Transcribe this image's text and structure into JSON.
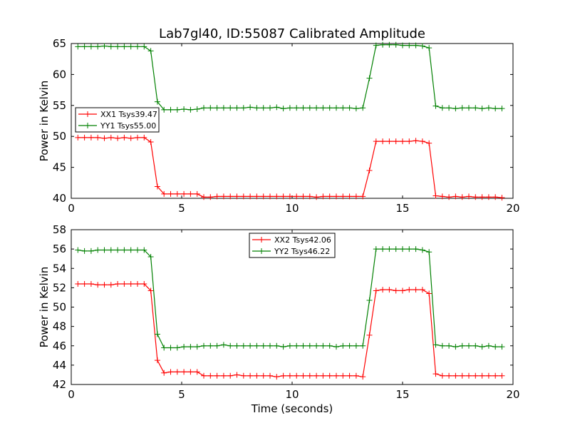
{
  "figure": {
    "title": "Lab7gl40, ID:55087 Calibrated Amplitude",
    "background": "#ffffff"
  },
  "colors": {
    "red": "#ff0000",
    "green": "#008000"
  },
  "chart_data": [
    {
      "type": "line",
      "title": "Lab7gl40, ID:55087 Calibrated Amplitude",
      "xlabel": "",
      "ylabel": "Power in Kelvin",
      "xlim": [
        0,
        20
      ],
      "ylim": [
        40,
        65
      ],
      "xticks": [
        0,
        5,
        10,
        15,
        20
      ],
      "yticks": [
        40,
        45,
        50,
        55,
        60,
        65
      ],
      "grid": false,
      "legend_position": "center-left",
      "x": [
        0.3,
        0.6,
        0.9,
        1.2,
        1.5,
        1.8,
        2.1,
        2.4,
        2.7,
        3.0,
        3.3,
        3.6,
        3.9,
        4.2,
        4.5,
        4.8,
        5.1,
        5.4,
        5.7,
        6.0,
        6.3,
        6.6,
        6.9,
        7.2,
        7.5,
        7.8,
        8.1,
        8.4,
        8.7,
        9.0,
        9.3,
        9.6,
        9.9,
        10.2,
        10.5,
        10.8,
        11.1,
        11.4,
        11.7,
        12.0,
        12.3,
        12.6,
        12.9,
        13.2,
        13.5,
        13.8,
        14.1,
        14.4,
        14.7,
        15.0,
        15.3,
        15.6,
        15.9,
        16.2,
        16.5,
        16.8,
        17.1,
        17.4,
        17.7,
        18.0,
        18.3,
        18.6,
        18.9,
        19.2,
        19.5
      ],
      "series": [
        {
          "name": "XX1 Tsys39.47",
          "color": "#ff0000",
          "values": [
            49.8,
            49.8,
            49.8,
            49.8,
            49.7,
            49.8,
            49.7,
            49.8,
            49.7,
            49.8,
            49.8,
            49.1,
            41.9,
            40.7,
            40.7,
            40.7,
            40.7,
            40.7,
            40.7,
            40.2,
            40.2,
            40.3,
            40.3,
            40.3,
            40.3,
            40.3,
            40.3,
            40.3,
            40.3,
            40.3,
            40.3,
            40.3,
            40.3,
            40.3,
            40.3,
            40.3,
            40.2,
            40.3,
            40.3,
            40.3,
            40.3,
            40.3,
            40.3,
            40.3,
            44.5,
            49.2,
            49.2,
            49.2,
            49.2,
            49.2,
            49.2,
            49.3,
            49.2,
            48.9,
            40.4,
            40.3,
            40.2,
            40.3,
            40.2,
            40.3,
            40.2,
            40.2,
            40.2,
            40.2,
            40.1
          ]
        },
        {
          "name": "YY1 Tsys55.00",
          "color": "#008000",
          "values": [
            64.5,
            64.5,
            64.5,
            64.5,
            64.6,
            64.5,
            64.5,
            64.5,
            64.5,
            64.5,
            64.5,
            63.8,
            55.6,
            54.3,
            54.3,
            54.3,
            54.4,
            54.3,
            54.4,
            54.6,
            54.6,
            54.6,
            54.6,
            54.6,
            54.6,
            54.6,
            54.7,
            54.6,
            54.6,
            54.6,
            54.7,
            54.5,
            54.6,
            54.6,
            54.6,
            54.6,
            54.6,
            54.6,
            54.6,
            54.6,
            54.6,
            54.6,
            54.5,
            54.6,
            59.4,
            64.7,
            64.8,
            64.8,
            64.8,
            64.7,
            64.7,
            64.7,
            64.6,
            64.3,
            54.9,
            54.6,
            54.6,
            54.5,
            54.6,
            54.6,
            54.6,
            54.5,
            54.6,
            54.5,
            54.5
          ]
        }
      ]
    },
    {
      "type": "line",
      "title": "",
      "xlabel": "Time (seconds)",
      "ylabel": "Power in Kelvin",
      "xlim": [
        0,
        20
      ],
      "ylim": [
        42,
        58
      ],
      "xticks": [
        0,
        5,
        10,
        15,
        20
      ],
      "yticks": [
        42,
        44,
        46,
        48,
        50,
        52,
        54,
        56,
        58
      ],
      "grid": false,
      "legend_position": "top-center",
      "x": [
        0.3,
        0.6,
        0.9,
        1.2,
        1.5,
        1.8,
        2.1,
        2.4,
        2.7,
        3.0,
        3.3,
        3.6,
        3.9,
        4.2,
        4.5,
        4.8,
        5.1,
        5.4,
        5.7,
        6.0,
        6.3,
        6.6,
        6.9,
        7.2,
        7.5,
        7.8,
        8.1,
        8.4,
        8.7,
        9.0,
        9.3,
        9.6,
        9.9,
        10.2,
        10.5,
        10.8,
        11.1,
        11.4,
        11.7,
        12.0,
        12.3,
        12.6,
        12.9,
        13.2,
        13.5,
        13.8,
        14.1,
        14.4,
        14.7,
        15.0,
        15.3,
        15.6,
        15.9,
        16.2,
        16.5,
        16.8,
        17.1,
        17.4,
        17.7,
        18.0,
        18.3,
        18.6,
        18.9,
        19.2,
        19.5
      ],
      "series": [
        {
          "name": "XX2 Tsys42.06",
          "color": "#ff0000",
          "values": [
            52.4,
            52.4,
            52.4,
            52.3,
            52.3,
            52.3,
            52.4,
            52.4,
            52.4,
            52.4,
            52.4,
            51.7,
            44.5,
            43.2,
            43.3,
            43.3,
            43.3,
            43.3,
            43.3,
            42.9,
            42.9,
            42.9,
            42.9,
            42.9,
            43.0,
            42.9,
            42.9,
            42.9,
            42.9,
            42.9,
            42.8,
            42.9,
            42.9,
            42.9,
            42.9,
            42.9,
            42.9,
            42.9,
            42.9,
            42.9,
            42.9,
            42.9,
            42.9,
            42.8,
            47.1,
            51.7,
            51.8,
            51.8,
            51.7,
            51.7,
            51.8,
            51.8,
            51.8,
            51.4,
            43.1,
            42.9,
            42.9,
            42.9,
            42.9,
            42.9,
            42.9,
            42.9,
            42.9,
            42.9,
            42.9
          ]
        },
        {
          "name": "YY2 Tsys46.22",
          "color": "#008000",
          "values": [
            55.9,
            55.8,
            55.8,
            55.9,
            55.9,
            55.9,
            55.9,
            55.9,
            55.9,
            55.9,
            55.9,
            55.2,
            47.2,
            45.8,
            45.8,
            45.8,
            45.9,
            45.9,
            45.9,
            46.0,
            46.0,
            46.0,
            46.1,
            46.0,
            46.0,
            46.0,
            46.0,
            46.0,
            46.0,
            46.0,
            46.0,
            45.9,
            46.0,
            46.0,
            46.0,
            46.0,
            46.0,
            46.0,
            46.0,
            45.9,
            46.0,
            46.0,
            46.0,
            46.0,
            50.7,
            56.0,
            56.0,
            56.0,
            56.0,
            56.0,
            56.0,
            56.0,
            55.9,
            55.7,
            46.1,
            46.0,
            46.0,
            45.9,
            46.0,
            46.0,
            46.0,
            45.9,
            46.0,
            45.9,
            45.9
          ]
        }
      ]
    }
  ]
}
